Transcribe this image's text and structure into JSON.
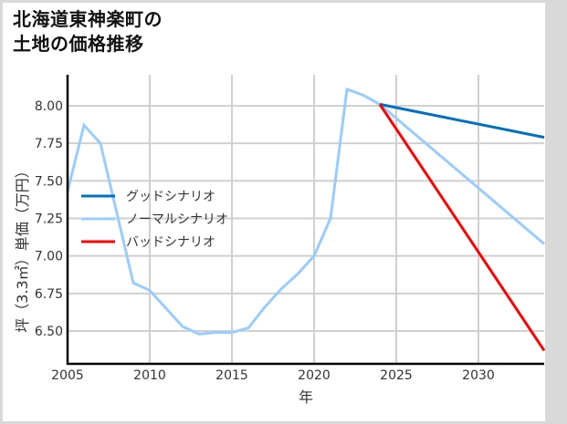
{
  "title": {
    "line1": "北海道東神楽町の",
    "line2": "土地の価格推移"
  },
  "chart_data": {
    "type": "line",
    "title": "北海道東神楽町の土地の価格推移",
    "xlabel": "年",
    "ylabel": "坪（3.3㎡）単価（万円）",
    "xlim": [
      2005,
      2034
    ],
    "ylim": [
      6.28,
      8.22
    ],
    "x_ticks": [
      "2005",
      "2010",
      "2015",
      "2020",
      "2025",
      "2030"
    ],
    "y_ticks": [
      "6.50",
      "6.75",
      "7.00",
      "7.25",
      "7.50",
      "7.75",
      "8.00"
    ],
    "grid": true,
    "legend_position": "upper-left-inside",
    "series": [
      {
        "name": "グッドシナリオ",
        "color": "#0070c0",
        "x": [
          2024,
          2034
        ],
        "values": [
          8.01,
          7.79
        ]
      },
      {
        "name": "ノーマルシナリオ",
        "color": "#99ccff",
        "x": [
          2005,
          2006,
          2007,
          2009,
          2010,
          2012,
          2013,
          2014,
          2015,
          2016,
          2017,
          2018,
          2019,
          2020,
          2021,
          2022,
          2023,
          2024,
          2034
        ],
        "values": [
          7.43,
          7.87,
          7.75,
          6.82,
          6.77,
          6.53,
          6.48,
          6.49,
          6.49,
          6.52,
          6.66,
          6.78,
          6.88,
          7.0,
          7.25,
          8.11,
          8.07,
          8.01,
          7.08
        ]
      },
      {
        "name": "バッドシナリオ",
        "color": "#ff0000",
        "x": [
          2024,
          2034
        ],
        "values": [
          8.01,
          6.37
        ]
      }
    ]
  }
}
